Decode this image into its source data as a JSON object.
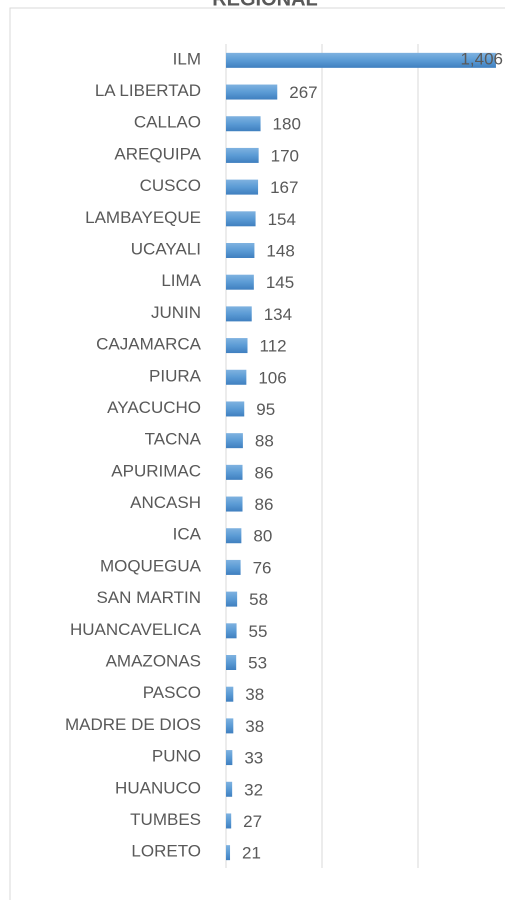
{
  "chart_data": {
    "type": "bar",
    "orientation": "horizontal",
    "title": "REGIONAL",
    "categories": [
      "ILM",
      "LA LIBERTAD",
      "CALLAO",
      "AREQUIPA",
      "CUSCO",
      "LAMBAYEQUE",
      "UCAYALI",
      "LIMA",
      "JUNIN",
      "CAJAMARCA",
      "PIURA",
      "AYACUCHO",
      "TACNA",
      "APURIMAC",
      "ANCASH",
      "ICA",
      "MOQUEGUA",
      "SAN MARTIN",
      "HUANCAVELICA",
      "AMAZONAS",
      "PASCO",
      "MADRE DE DIOS",
      "PUNO",
      "HUANUCO",
      "TUMBES",
      "LORETO"
    ],
    "values": [
      1406,
      267,
      180,
      170,
      167,
      154,
      148,
      145,
      134,
      112,
      106,
      95,
      88,
      86,
      86,
      80,
      76,
      58,
      55,
      53,
      38,
      38,
      33,
      32,
      27,
      21
    ],
    "value_labels": [
      "1,406",
      "267",
      "180",
      "170",
      "167",
      "154",
      "148",
      "145",
      "134",
      "112",
      "106",
      "95",
      "88",
      "86",
      "86",
      "80",
      "76",
      "58",
      "55",
      "53",
      "38",
      "38",
      "33",
      "32",
      "27",
      "21"
    ],
    "color": "#5b9bd5",
    "xlim": [
      0,
      1500
    ],
    "xticks": [
      0,
      500,
      1000
    ],
    "grid": true
  }
}
